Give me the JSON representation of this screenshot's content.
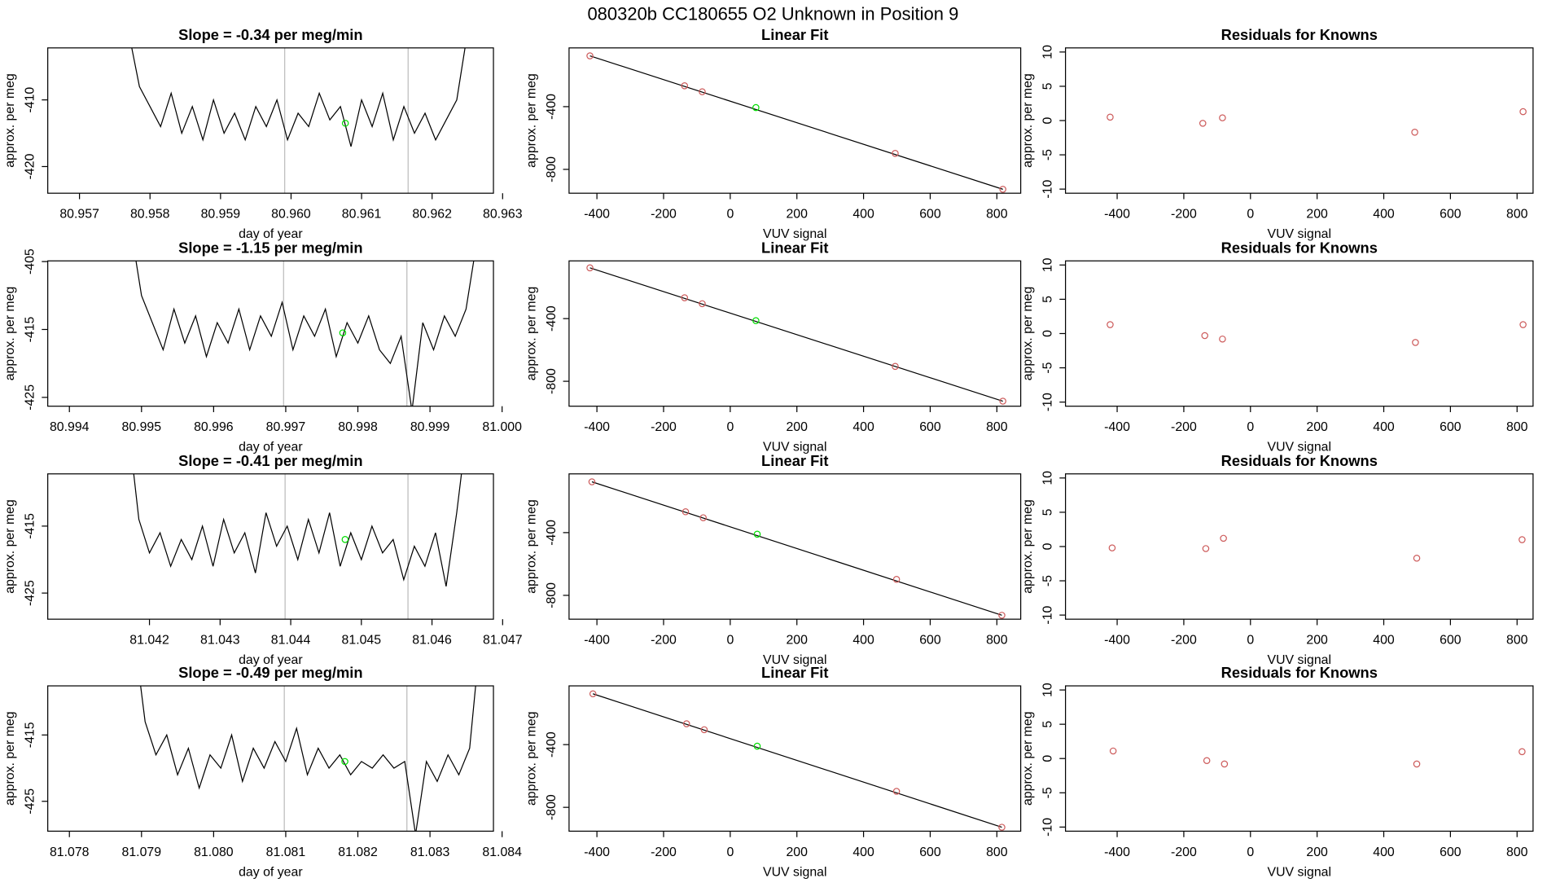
{
  "title": "080320b      CC180655   O2 Unknown in Position  9",
  "chart_data": [
    {
      "type": "line",
      "title": "Slope =  -0.34  per meg/min",
      "xlabel": "day of year",
      "ylabel": "approx. per meg",
      "xlim": [
        80.95655,
        80.96287
      ],
      "ylim": [
        -424,
        -402.2
      ],
      "xticks": [
        80.957,
        80.958,
        80.959,
        {
          "value": 80.96,
          "label": "80.960"
        },
        80.961,
        80.962,
        80.963
      ],
      "yticks": [
        -420,
        -410
      ],
      "x": [
        80.9577,
        80.95785,
        80.958,
        80.95815,
        80.9583,
        80.95845,
        80.9586,
        80.95875,
        80.9589,
        80.95905,
        80.9592,
        80.95935,
        80.9595,
        80.95965,
        80.9598,
        80.95995,
        80.9601,
        80.96025,
        80.9604,
        80.96055,
        80.9607,
        80.96085,
        80.961,
        80.96115,
        80.9613,
        80.96145,
        80.9616,
        80.96175,
        80.9619,
        80.96205,
        80.9622,
        80.96235,
        80.9625
      ],
      "values": [
        -400,
        -408,
        -411,
        -414,
        -409,
        -415,
        -411,
        -416,
        -410,
        -415,
        -412,
        -416,
        -411,
        -414,
        -410,
        -416,
        -412,
        -414,
        -409,
        -413,
        -411,
        -417,
        -410,
        -414,
        -409,
        -416,
        -411,
        -415,
        -412,
        -416,
        -413,
        -410,
        -400
      ],
      "color": "#000000",
      "vlines": [
        80.95991,
        80.96166
      ],
      "vline_color": "#bbbbbb",
      "marker": {
        "x": 80.96077,
        "y": -413.5,
        "color": "#00dd00"
      }
    },
    {
      "type": "fit",
      "title": "Linear Fit",
      "xlabel": "VUV signal",
      "ylabel": "approx. per meg",
      "xlim": [
        -483.6,
        871.6
      ],
      "ylim": [
        -952,
        -25.4
      ],
      "xticks": [
        -400,
        -200,
        0,
        200,
        400,
        600,
        800
      ],
      "yticks": [
        -800,
        -400
      ],
      "x": [
        -421,
        -137,
        -84,
        77,
        495,
        818
      ],
      "values": [
        -76,
        -267,
        -305,
        -406,
        -698,
        -927
      ],
      "point_colors": [
        "#cd5c5c",
        "#cd5c5c",
        "#cd5c5c",
        "#00dd00",
        "#cd5c5c",
        "#cd5c5c"
      ],
      "line_color": "#000000"
    },
    {
      "type": "scatter",
      "title": "Residuals for Knowns",
      "xlabel": "VUV signal",
      "ylabel": "approx. per meg",
      "xlim": [
        -555,
        848
      ],
      "ylim": [
        -10.6,
        10.6
      ],
      "xticks": [
        -400,
        -200,
        0,
        200,
        400,
        600,
        800
      ],
      "yticks": [
        -10,
        -5,
        0,
        5,
        10
      ],
      "x": [
        -421,
        -143,
        -84,
        493,
        818
      ],
      "values": [
        0.5,
        -0.4,
        0.4,
        -1.7,
        1.3
      ],
      "color": "#cd5c5c"
    },
    {
      "type": "line",
      "title": "Slope =  -1.15  per meg/min",
      "xlabel": "day of year",
      "ylabel": "approx. per meg",
      "xlim": [
        80.9937,
        80.99988
      ],
      "ylim": [
        -426.3,
        -404.9
      ],
      "xticks": [
        80.994,
        80.995,
        80.996,
        80.997,
        80.998,
        80.999,
        {
          "value": 81,
          "label": "81.000"
        }
      ],
      "yticks": [
        -425,
        -415,
        -405
      ],
      "x": [
        80.99485,
        80.995,
        80.99515,
        80.9953,
        80.99545,
        80.9956,
        80.99575,
        80.9959,
        80.99605,
        80.9962,
        80.99635,
        80.9965,
        80.99665,
        80.9968,
        80.99695,
        80.9971,
        80.99725,
        80.9974,
        80.99755,
        80.9977,
        80.99785,
        80.998,
        80.99815,
        80.9983,
        80.99845,
        80.9986,
        80.99875,
        80.9989,
        80.99905,
        80.9992,
        80.99935,
        80.9995,
        80.99965
      ],
      "values": [
        -400,
        -410,
        -414,
        -418,
        -412,
        -417,
        -413,
        -419,
        -414,
        -417,
        -412,
        -418,
        -413,
        -416,
        -411,
        -418,
        -413,
        -416,
        -412,
        -419,
        -414,
        -417,
        -413,
        -418,
        -420,
        -416,
        -427,
        -414,
        -418,
        -413,
        -416,
        -412,
        -402
      ],
      "color": "#000000",
      "vlines": [
        80.99697,
        80.99868
      ],
      "vline_color": "#bbbbbb",
      "marker": {
        "x": 80.99779,
        "y": -415.5,
        "color": "#00dd00"
      }
    },
    {
      "type": "fit",
      "title": "Linear Fit",
      "xlabel": "VUV signal",
      "ylabel": "approx. per meg",
      "xlim": [
        -483.6,
        871.6
      ],
      "ylim": [
        -959,
        -31.7
      ],
      "xticks": [
        -400,
        -200,
        0,
        200,
        400,
        600,
        800
      ],
      "yticks": [
        -800,
        -400
      ],
      "x": [
        -421,
        -137,
        -84,
        77,
        495,
        818
      ],
      "values": [
        -76,
        -267,
        -305,
        -413,
        -705,
        -927
      ],
      "point_colors": [
        "#cd5c5c",
        "#cd5c5c",
        "#cd5c5c",
        "#00dd00",
        "#cd5c5c",
        "#cd5c5c"
      ],
      "line_color": "#000000"
    },
    {
      "type": "scatter",
      "title": "Residuals for Knowns",
      "xlabel": "VUV signal",
      "ylabel": "approx. per meg",
      "xlim": [
        -555,
        848
      ],
      "ylim": [
        -10.6,
        10.6
      ],
      "xticks": [
        -400,
        -200,
        0,
        200,
        400,
        600,
        800
      ],
      "yticks": [
        -10,
        -5,
        0,
        5,
        10
      ],
      "x": [
        -421,
        -137,
        -84,
        495,
        818
      ],
      "values": [
        1.3,
        -0.3,
        -0.8,
        -1.3,
        1.3
      ],
      "color": "#cd5c5c"
    },
    {
      "type": "line",
      "title": "Slope =  -0.41  per meg/min",
      "xlabel": "day of year",
      "ylabel": "approx. per meg",
      "xlim": [
        81.04056,
        81.04687
      ],
      "ylim": [
        -428.9,
        -407.2
      ],
      "xticks": [
        81.042,
        81.043,
        81.044,
        81.045,
        81.046,
        81.047
      ],
      "yticks": [
        -425,
        -415
      ],
      "x": [
        81.0417,
        81.04185,
        81.042,
        81.04215,
        81.0423,
        81.04245,
        81.0426,
        81.04275,
        81.0429,
        81.04305,
        81.0432,
        81.04335,
        81.0435,
        81.04365,
        81.0438,
        81.04395,
        81.0441,
        81.04425,
        81.0444,
        81.04455,
        81.0447,
        81.04485,
        81.045,
        81.04515,
        81.0453,
        81.04545,
        81.0456,
        81.04575,
        81.0459,
        81.04605,
        81.0462,
        81.04635,
        81.0465
      ],
      "values": [
        -400,
        -414,
        -419,
        -416,
        -421,
        -417,
        -420,
        -415,
        -421,
        -414,
        -419,
        -416,
        -422,
        -413,
        -418,
        -415,
        -420,
        -414,
        -419,
        -413,
        -421,
        -416,
        -420,
        -415,
        -419,
        -417,
        -423,
        -418,
        -421,
        -416,
        -424,
        -413,
        -400
      ],
      "color": "#000000",
      "vlines": [
        81.04392,
        81.04566
      ],
      "vline_color": "#bbbbbb",
      "marker": {
        "x": 81.04477,
        "y": -417,
        "color": "#00dd00"
      }
    },
    {
      "type": "fit",
      "title": "Linear Fit",
      "xlabel": "VUV signal",
      "ylabel": "approx. per meg",
      "xlim": [
        -483.6,
        871.6
      ],
      "ylim": [
        -952,
        -25.4
      ],
      "xticks": [
        -400,
        -200,
        0,
        200,
        400,
        600,
        800
      ],
      "yticks": [
        -800,
        -400
      ],
      "x": [
        -415,
        -134,
        -81,
        81,
        499,
        815
      ],
      "values": [
        -76,
        -267,
        -305,
        -410,
        -698,
        -927
      ],
      "point_colors": [
        "#cd5c5c",
        "#cd5c5c",
        "#cd5c5c",
        "#00dd00",
        "#cd5c5c",
        "#cd5c5c"
      ],
      "line_color": "#000000"
    },
    {
      "type": "scatter",
      "title": "Residuals for Knowns",
      "xlabel": "VUV signal",
      "ylabel": "approx. per meg",
      "xlim": [
        -555,
        848
      ],
      "ylim": [
        -10.6,
        10.6
      ],
      "xticks": [
        -400,
        -200,
        0,
        200,
        400,
        600,
        800
      ],
      "yticks": [
        -10,
        -5,
        0,
        5,
        10
      ],
      "x": [
        -415,
        -134,
        -81,
        499,
        815
      ],
      "values": [
        -0.2,
        -0.3,
        1.2,
        -1.7,
        1.0
      ],
      "color": "#cd5c5c"
    },
    {
      "type": "line",
      "title": "Slope =  -0.49  per meg/min",
      "xlabel": "day of year",
      "ylabel": "approx. per meg",
      "xlim": [
        81.0777,
        81.08388
      ],
      "ylim": [
        -429.5,
        -407.6
      ],
      "xticks": [
        81.078,
        81.079,
        {
          "value": 81.08,
          "label": "81.080"
        },
        81.081,
        81.082,
        81.083,
        81.084
      ],
      "yticks": [
        -425,
        -415
      ],
      "x": [
        81.0789,
        81.07905,
        81.0792,
        81.07935,
        81.0795,
        81.07965,
        81.0798,
        81.07995,
        81.0801,
        81.08025,
        81.0804,
        81.08055,
        81.0807,
        81.08085,
        81.081,
        81.08115,
        81.0813,
        81.08145,
        81.0816,
        81.08175,
        81.0819,
        81.08205,
        81.0822,
        81.08235,
        81.0825,
        81.08265,
        81.0828,
        81.08295,
        81.0831,
        81.08325,
        81.0834,
        81.08355,
        81.0837
      ],
      "values": [
        -400,
        -413,
        -418,
        -415,
        -421,
        -417,
        -423,
        -418,
        -420,
        -415,
        -422,
        -417,
        -420,
        -416,
        -419,
        -414,
        -421,
        -417,
        -420,
        -418,
        -421,
        -419,
        -420,
        -418,
        -420,
        -419,
        -430,
        -419,
        -422,
        -418,
        -421,
        -417,
        -400
      ],
      "color": "#000000",
      "vlines": [
        81.08098,
        81.08268
      ],
      "vline_color": "#bbbbbb",
      "marker": {
        "x": 81.08182,
        "y": -419,
        "color": "#00dd00"
      }
    },
    {
      "type": "fit",
      "title": "Linear Fit",
      "xlabel": "VUV signal",
      "ylabel": "approx. per meg",
      "xlim": [
        -483.6,
        871.6
      ],
      "ylim": [
        -952,
        -25.4
      ],
      "xticks": [
        -400,
        -200,
        0,
        200,
        400,
        600,
        800
      ],
      "yticks": [
        -800,
        -400
      ],
      "x": [
        -412,
        -131,
        -78,
        81,
        499,
        815
      ],
      "values": [
        -76,
        -267,
        -305,
        -410,
        -698,
        -927
      ],
      "point_colors": [
        "#cd5c5c",
        "#cd5c5c",
        "#cd5c5c",
        "#00dd00",
        "#cd5c5c",
        "#cd5c5c"
      ],
      "line_color": "#000000"
    },
    {
      "type": "scatter",
      "title": "Residuals for Knowns",
      "xlabel": "VUV signal",
      "ylabel": "approx. per meg",
      "xlim": [
        -555,
        848
      ],
      "ylim": [
        -10.6,
        10.6
      ],
      "xticks": [
        -400,
        -200,
        0,
        200,
        400,
        600,
        800
      ],
      "yticks": [
        -10,
        -5,
        0,
        5,
        10
      ],
      "x": [
        -412,
        -131,
        -78,
        499,
        815
      ],
      "values": [
        1.1,
        -0.3,
        -0.8,
        -0.8,
        1.0
      ],
      "color": "#cd5c5c"
    }
  ]
}
